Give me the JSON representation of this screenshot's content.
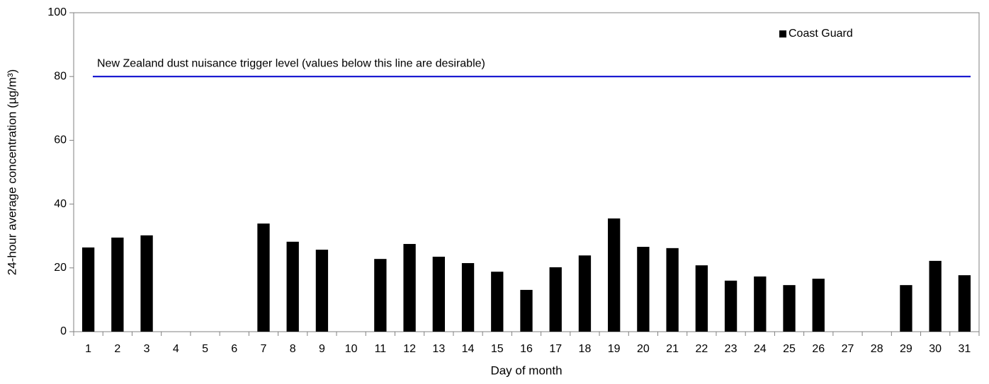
{
  "chart_data": {
    "type": "bar",
    "x_label": "Day of month",
    "y_label": "24-hour average concentration (µg/m³)",
    "categories": [
      "1",
      "2",
      "3",
      "4",
      "5",
      "6",
      "7",
      "8",
      "9",
      "10",
      "11",
      "12",
      "13",
      "14",
      "15",
      "16",
      "17",
      "18",
      "19",
      "20",
      "21",
      "22",
      "23",
      "24",
      "25",
      "26",
      "27",
      "28",
      "29",
      "30",
      "31"
    ],
    "series": [
      {
        "name": "Coast Guard",
        "color": "#000000",
        "values": [
          26.4,
          29.5,
          30.2,
          null,
          null,
          null,
          33.9,
          28.2,
          25.7,
          null,
          22.8,
          27.5,
          23.5,
          21.5,
          18.8,
          13.1,
          20.2,
          23.9,
          35.5,
          26.6,
          26.2,
          20.8,
          16.0,
          17.3,
          14.6,
          16.6,
          null,
          null,
          14.6,
          22.2,
          17.7
        ]
      }
    ],
    "threshold": {
      "value": 80,
      "label": "New Zealand dust nuisance trigger level (values below this line are desirable)",
      "color": "#0000cc"
    },
    "ylim": [
      0,
      100
    ],
    "yticks": [
      0,
      20,
      40,
      60,
      80,
      100
    ],
    "grid": false,
    "legend": "top-right"
  }
}
